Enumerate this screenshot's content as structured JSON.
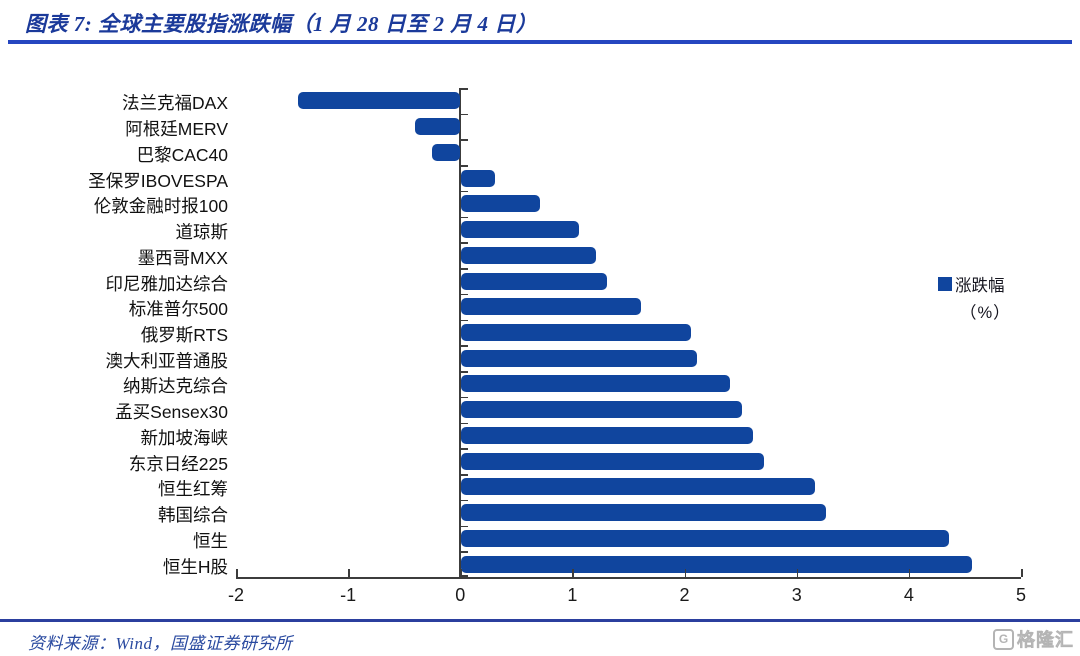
{
  "header": {
    "title": "图表 7:  全球主要股指涨跌幅（1 月 28 日至 2 月 4 日）"
  },
  "chart_data": {
    "type": "bar",
    "orientation": "horizontal",
    "title": "全球主要股指涨跌幅（1 月 28 日至 2 月 4 日）",
    "xlabel": "",
    "ylabel": "",
    "xlim": [
      -2,
      5
    ],
    "xticks": [
      -2,
      -1,
      0,
      1,
      2,
      3,
      4,
      5
    ],
    "grid": false,
    "legend_position": "middle-right",
    "bar_color": "#10459e",
    "categories": [
      "法兰克福DAX",
      "阿根廷MERV",
      "巴黎CAC40",
      "圣保罗IBOVESPA",
      "伦敦金融时报100",
      "道琼斯",
      "墨西哥MXX",
      "印尼雅加达综合",
      "标准普尔500",
      "俄罗斯RTS",
      "澳大利亚普通股",
      "纳斯达克综合",
      "孟买Sensex30",
      "新加坡海峡",
      "东京日经225",
      "恒生红筹",
      "韩国综合",
      "恒生",
      "恒生H股"
    ],
    "series": [
      {
        "name": "涨跌幅（%）",
        "values": [
          -1.45,
          -0.4,
          -0.25,
          0.3,
          0.7,
          1.05,
          1.2,
          1.3,
          1.6,
          2.05,
          2.1,
          2.4,
          2.5,
          2.6,
          2.7,
          3.15,
          3.25,
          4.35,
          4.55
        ]
      }
    ]
  },
  "legend": {
    "label_line1": "涨跌幅",
    "label_line2": "（%）",
    "swatch_color": "#10459e"
  },
  "footer": {
    "source": "资料来源：Wind，国盛证券研究所",
    "logo_g": "G",
    "logo_text": "格隆汇"
  }
}
